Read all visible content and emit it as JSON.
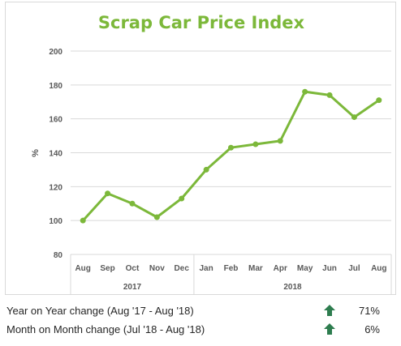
{
  "chart_data": {
    "type": "line",
    "title": "Scrap Car Price Index",
    "ylabel": "%",
    "xlabel": "",
    "ylim": [
      80,
      200
    ],
    "yticks": [
      80,
      100,
      120,
      140,
      160,
      180,
      200
    ],
    "grid": true,
    "legend": "none",
    "categories": [
      "Aug",
      "Sep",
      "Oct",
      "Nov",
      "Dec",
      "Jan",
      "Feb",
      "Mar",
      "Apr",
      "May",
      "Jun",
      "Jul",
      "Aug"
    ],
    "year_groups": [
      {
        "label": "2017",
        "count": 5
      },
      {
        "label": "2018",
        "count": 8
      }
    ],
    "series": [
      {
        "values": [
          100,
          116,
          110,
          102,
          113,
          130,
          143,
          145,
          147,
          176,
          174,
          161,
          171
        ],
        "color": "#7cb83a"
      }
    ]
  },
  "summary": {
    "rows": [
      {
        "label": "Year on Year change (Aug '17 - Aug '18)",
        "value": "71%",
        "icon": "up-arrow-icon"
      },
      {
        "label": "Month on Month change (Jul '18 - Aug '18)",
        "value": "6%",
        "icon": "up-arrow-icon"
      }
    ],
    "arrow_color": "#2e7d4f"
  },
  "colors": {
    "line": "#7cb83a",
    "grid": "#d9d9d9",
    "text": "#595959"
  }
}
